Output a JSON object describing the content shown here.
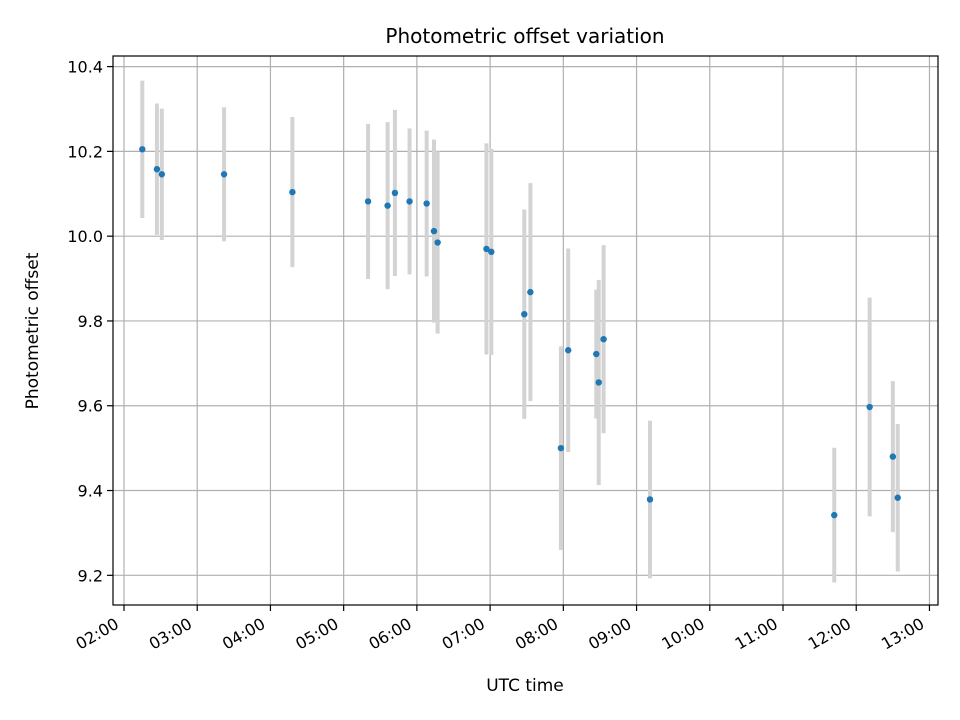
{
  "chart_data": {
    "type": "scatter",
    "title": "Photometric offset variation",
    "xlabel": "UTC time",
    "ylabel": "Photometric offset",
    "xlim": [
      "01:51",
      "13:07"
    ],
    "ylim": [
      9.13,
      10.425
    ],
    "x_ticks": [
      "02:00",
      "03:00",
      "04:00",
      "05:00",
      "06:00",
      "07:00",
      "08:00",
      "09:00",
      "10:00",
      "11:00",
      "12:00",
      "13:00"
    ],
    "y_ticks": [
      9.2,
      9.4,
      9.6,
      9.8,
      10.0,
      10.2,
      10.4
    ],
    "y_tick_labels": [
      "9.2",
      "9.4",
      "9.6",
      "9.8",
      "10.0",
      "10.2",
      "10.4"
    ],
    "grid": true,
    "colors": {
      "point": "#1f77b4",
      "errorbar": "#d3d3d3",
      "grid": "#b0b0b0"
    },
    "points": [
      {
        "time": "02:15",
        "y": 10.205,
        "err": 0.162
      },
      {
        "time": "02:27",
        "y": 10.158,
        "err": 0.155
      },
      {
        "time": "02:31",
        "y": 10.146,
        "err": 0.155
      },
      {
        "time": "03:22",
        "y": 10.146,
        "err": 0.158
      },
      {
        "time": "04:18",
        "y": 10.104,
        "err": 0.177
      },
      {
        "time": "05:20",
        "y": 10.082,
        "err": 0.183
      },
      {
        "time": "05:36",
        "y": 10.072,
        "err": 0.197
      },
      {
        "time": "05:42",
        "y": 10.102,
        "err": 0.196
      },
      {
        "time": "05:54",
        "y": 10.082,
        "err": 0.172
      },
      {
        "time": "06:08",
        "y": 10.077,
        "err": 0.172
      },
      {
        "time": "06:14",
        "y": 10.012,
        "err": 0.216
      },
      {
        "time": "06:17",
        "y": 9.985,
        "err": 0.215
      },
      {
        "time": "06:57",
        "y": 9.97,
        "err": 0.249
      },
      {
        "time": "07:01",
        "y": 9.963,
        "err": 0.243
      },
      {
        "time": "07:28",
        "y": 9.816,
        "err": 0.247
      },
      {
        "time": "07:33",
        "y": 9.868,
        "err": 0.257
      },
      {
        "time": "07:58",
        "y": 9.5,
        "err": 0.24
      },
      {
        "time": "08:04",
        "y": 9.731,
        "err": 0.24
      },
      {
        "time": "08:27",
        "y": 9.722,
        "err": 0.152
      },
      {
        "time": "08:29",
        "y": 9.655,
        "err": 0.242
      },
      {
        "time": "08:33",
        "y": 9.757,
        "err": 0.222
      },
      {
        "time": "09:11",
        "y": 9.379,
        "err": 0.186
      },
      {
        "time": "11:42",
        "y": 9.342,
        "err": 0.159
      },
      {
        "time": "12:11",
        "y": 9.597,
        "err": 0.258
      },
      {
        "time": "12:30",
        "y": 9.48,
        "err": 0.178
      },
      {
        "time": "12:34",
        "y": 9.383,
        "err": 0.174
      }
    ]
  }
}
